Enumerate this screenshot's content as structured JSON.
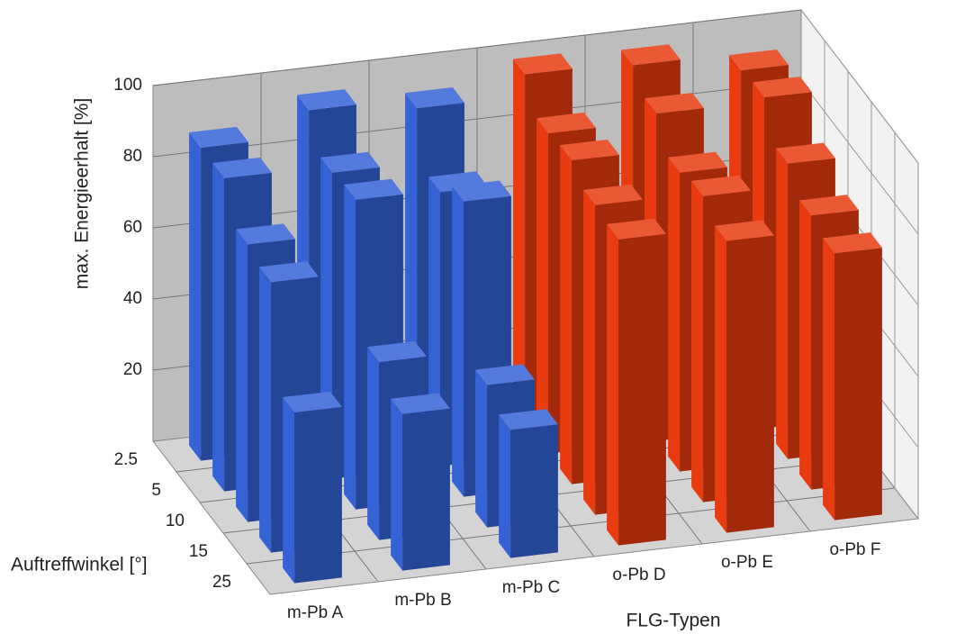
{
  "chart_data": {
    "type": "bar3d",
    "y_label": "max. Energieerhalt [%]",
    "x_label": "FLG-Typen",
    "depth_label": "Auftreffwinkel [°]",
    "depth_categories": [
      "2.5",
      "5",
      "10",
      "15",
      "25"
    ],
    "ylim": [
      0,
      100
    ],
    "yticks": [
      20,
      40,
      60,
      80,
      100
    ],
    "grid": true,
    "series": [
      {
        "name": "m-Pb A",
        "color": "#3563d6",
        "values": [
          88,
          88,
          78,
          76,
          48
        ]
      },
      {
        "name": "m-Pb B",
        "color": "#3563d6",
        "values": [
          95,
          86,
          87,
          50,
          44
        ]
      },
      {
        "name": "m-Pb C",
        "color": "#3563d6",
        "values": [
          92,
          77,
          83,
          40,
          36
        ]
      },
      {
        "name": "o-Pb D",
        "color": "#e83c10",
        "values": [
          98,
          90,
          91,
          87,
          86
        ]
      },
      {
        "name": "o-Pb E",
        "color": "#e83c10",
        "values": [
          97,
          92,
          84,
          86,
          82
        ]
      },
      {
        "name": "o-Pb F",
        "color": "#e83c10",
        "values": [
          92,
          93,
          83,
          77,
          75
        ]
      }
    ]
  }
}
